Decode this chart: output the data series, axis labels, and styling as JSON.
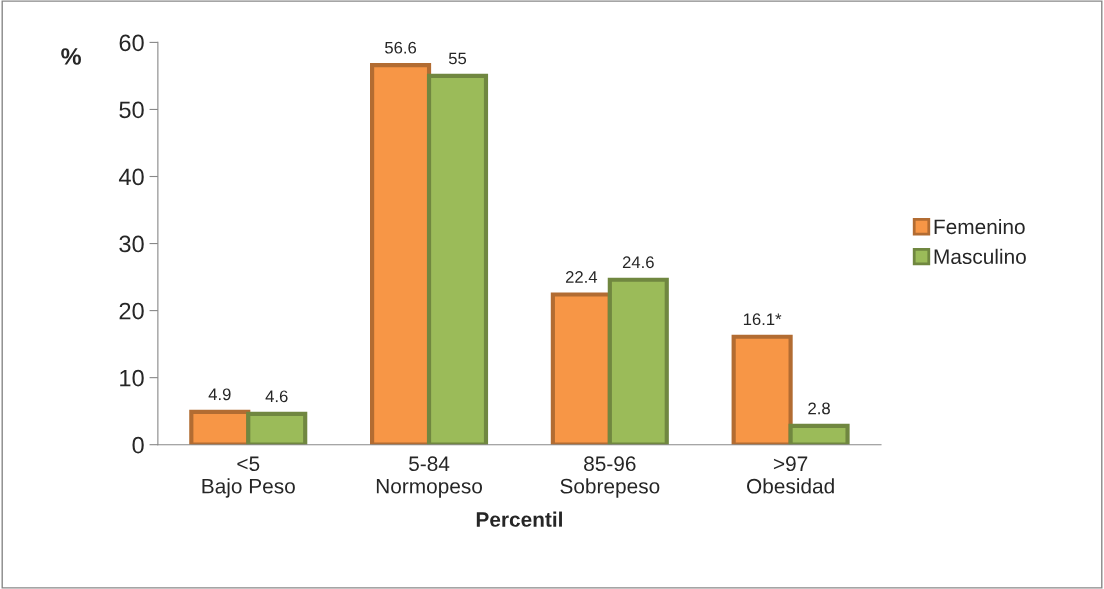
{
  "chart_data": {
    "type": "bar",
    "categories": [
      "<5\nBajo Peso",
      "5-84\nNormopeso",
      "85-96\nSobrepeso",
      ">97\nObesidad"
    ],
    "series": [
      {
        "name": "Femenino",
        "color": "#f79646",
        "values": [
          4.9,
          56.6,
          22.4,
          16.1
        ],
        "value_labels": [
          "4.9",
          "56.6",
          "22.4",
          "16.1*"
        ]
      },
      {
        "name": "Masculino",
        "color": "#9bbb59",
        "values": [
          4.6,
          55,
          24.6,
          2.8
        ],
        "value_labels": [
          "4.6",
          "55",
          "24.6",
          "2.8"
        ]
      }
    ],
    "xlabel": "Percentil",
    "ylabel": "%",
    "ylim": [
      0,
      60
    ],
    "yticks": [
      0,
      10,
      20,
      30,
      40,
      50,
      60
    ],
    "grid": false,
    "legend": "right"
  }
}
